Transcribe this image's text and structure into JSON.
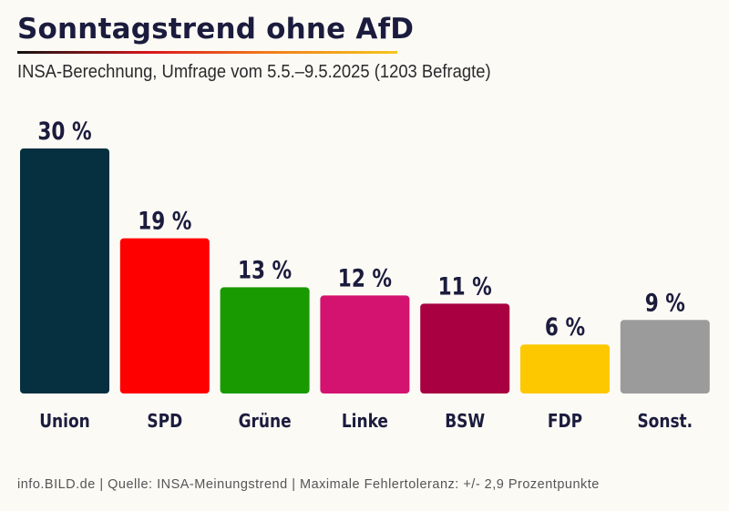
{
  "chart_data": {
    "type": "bar",
    "title": "Sonntagstrend ohne AfD",
    "subtitle": "INSA-Berechnung, Umfrage vom 5.5.–9.5.2025 (1203 Befragte)",
    "categories": [
      "Union",
      "SPD",
      "Grüne",
      "Linke",
      "BSW",
      "FDP",
      "Sonst."
    ],
    "values": [
      30,
      19,
      13,
      12,
      11,
      6,
      9
    ],
    "value_labels": [
      "30 %",
      "19 %",
      "13 %",
      "12 %",
      "11 %",
      "6 %",
      "9 %"
    ],
    "colors": [
      "#06303f",
      "#fe0000",
      "#189a00",
      "#d3136f",
      "#a80041",
      "#fdc800",
      "#9b9b9b"
    ],
    "ylim": [
      0,
      30
    ],
    "grid": false,
    "xlabel": "",
    "ylabel": ""
  },
  "footer": "info.BILD.de | Quelle: INSA-Meinungstrend | Maximale Fehlertoleranz: +/- 2,9 Prozentpunkte"
}
